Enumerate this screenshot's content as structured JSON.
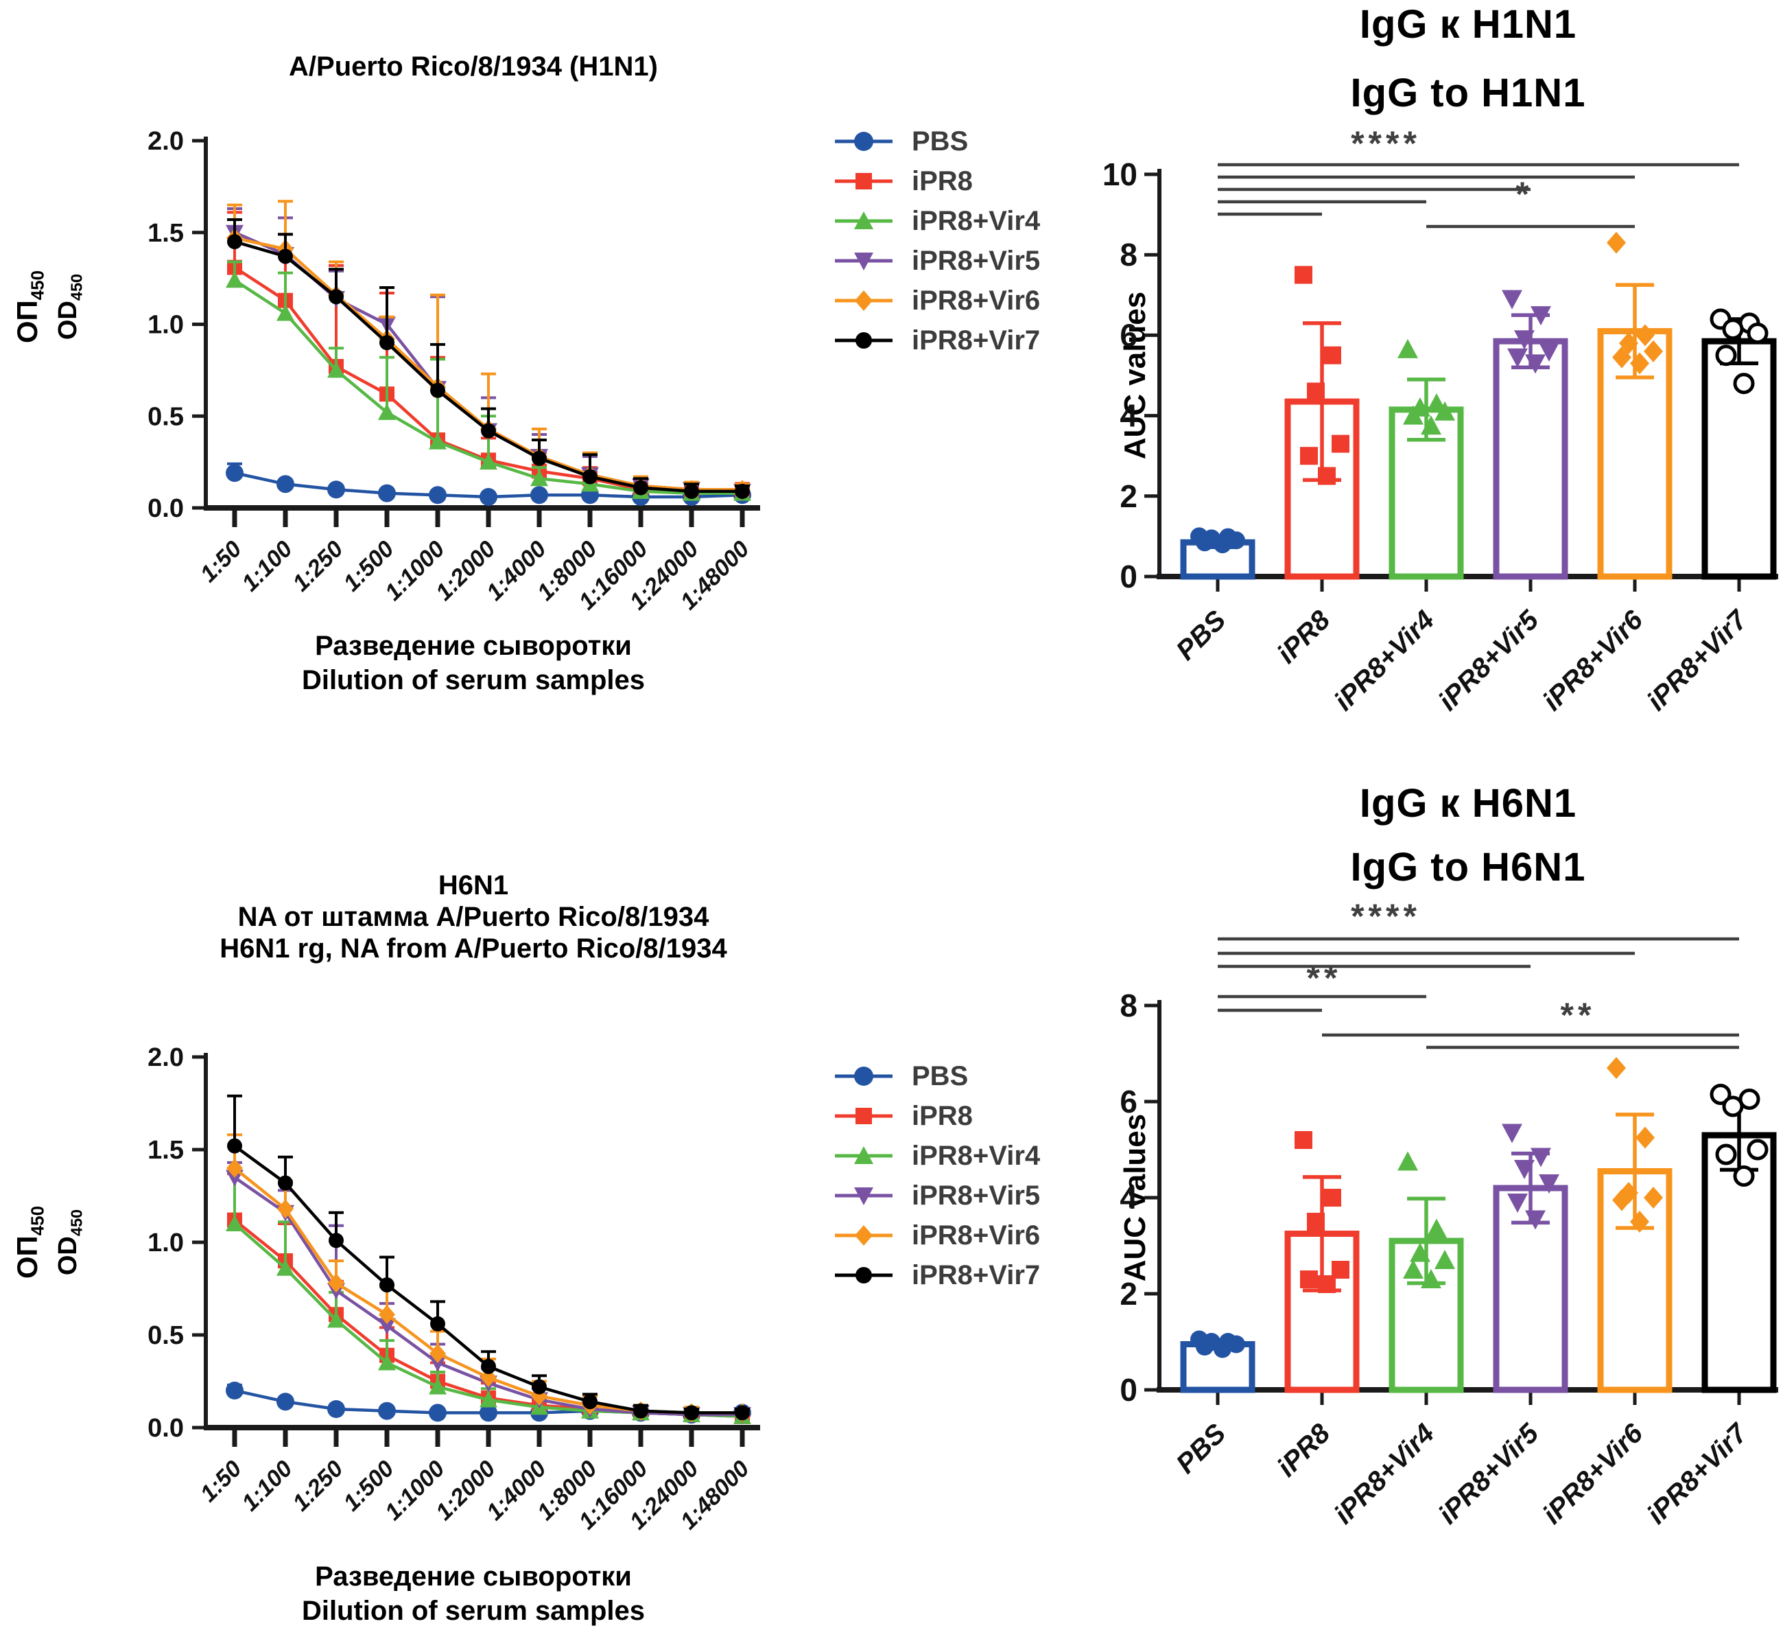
{
  "colors": {
    "pbs": "#2353A3",
    "ipr8": "#F03C2D",
    "vir4": "#57B846",
    "vir5": "#7A52A3",
    "vir6": "#F7941E",
    "vir7": "#000000",
    "significance": "#3F3F3F",
    "axis": "#1A1A1A"
  },
  "groups": [
    "PBS",
    "iPR8",
    "iPR8+Vir4",
    "iPR8+Vir5",
    "iPR8+Vir6",
    "iPR8+Vir7"
  ],
  "legend": {
    "items": [
      {
        "label": "PBS",
        "marker": "circle",
        "color": "#2353A3"
      },
      {
        "label": "iPR8",
        "marker": "square",
        "color": "#F03C2D"
      },
      {
        "label": "iPR8+Vir4",
        "marker": "triangle-up",
        "color": "#57B846"
      },
      {
        "label": "iPR8+Vir5",
        "marker": "triangle-down",
        "color": "#7A52A3"
      },
      {
        "label": "iPR8+Vir6",
        "marker": "diamond",
        "color": "#F7941E"
      },
      {
        "label": "iPR8+Vir7",
        "marker": "circle",
        "color": "#000000"
      }
    ]
  },
  "chart_data": [
    {
      "type": "line",
      "title": [
        "A/Puerto Rico/8/1934 (H1N1)"
      ],
      "ylabel_l1": "ОП",
      "ylabel_l1_sub": "450",
      "ylabel_l2": "OD",
      "ylabel_l2_sub": "450",
      "xlabel": [
        "Разведение сыворотки",
        "Dilution of serum samples"
      ],
      "categories": [
        "1:50",
        "1:100",
        "1:250",
        "1:500",
        "1:1000",
        "1:2000",
        "1:4000",
        "1:8000",
        "1:16000",
        "1:24000",
        "1:48000"
      ],
      "ylim": [
        0,
        2
      ],
      "yticks": {
        "labels": [
          "0.0",
          "0.5",
          "1.0",
          "1.5",
          "2.0"
        ],
        "values": [
          0,
          0.5,
          1.0,
          1.5,
          2.0
        ]
      },
      "grid": false,
      "series": [
        {
          "name": "PBS",
          "marker": "circle",
          "color": "#2353A3",
          "values": [
            0.19,
            0.13,
            0.1,
            0.08,
            0.07,
            0.06,
            0.07,
            0.07,
            0.06,
            0.06,
            0.07
          ],
          "err": [
            0.05,
            0.02,
            0.015,
            0.01,
            0.01,
            0.01,
            0.01,
            0.01,
            0.01,
            0.01,
            0.01
          ]
        },
        {
          "name": "iPR8",
          "marker": "square",
          "color": "#F03C2D",
          "values": [
            1.31,
            1.13,
            0.77,
            0.62,
            0.37,
            0.26,
            0.2,
            0.16,
            0.1,
            0.09,
            0.1
          ],
          "err": [
            0.3,
            0.36,
            0.55,
            0.55,
            0.45,
            0.12,
            0.1,
            0.06,
            0.03,
            0.03,
            0.03
          ]
        },
        {
          "name": "iPR8+Vir4",
          "marker": "triangle-up",
          "color": "#57B846",
          "values": [
            1.24,
            1.06,
            0.75,
            0.52,
            0.36,
            0.25,
            0.16,
            0.13,
            0.09,
            0.08,
            0.08
          ],
          "err": [
            0.1,
            0.22,
            0.12,
            0.3,
            0.45,
            0.25,
            0.06,
            0.04,
            0.03,
            0.02,
            0.02
          ]
        },
        {
          "name": "iPR8+Vir5",
          "marker": "triangle-down",
          "color": "#7A52A3",
          "values": [
            1.5,
            1.38,
            1.14,
            1.0,
            0.65,
            0.42,
            0.28,
            0.18,
            0.12,
            0.1,
            0.09
          ],
          "err": [
            0.13,
            0.2,
            0.15,
            0.2,
            0.5,
            0.18,
            0.12,
            0.1,
            0.04,
            0.03,
            0.03
          ]
        },
        {
          "name": "iPR8+Vir6",
          "marker": "diamond",
          "color": "#F7941E",
          "values": [
            1.47,
            1.41,
            1.16,
            0.92,
            0.66,
            0.43,
            0.28,
            0.18,
            0.12,
            0.1,
            0.1
          ],
          "err": [
            0.18,
            0.26,
            0.18,
            0.12,
            0.5,
            0.3,
            0.15,
            0.12,
            0.05,
            0.04,
            0.03
          ]
        },
        {
          "name": "iPR8+Vir7",
          "marker": "circle",
          "color": "#000000",
          "values": [
            1.45,
            1.37,
            1.15,
            0.9,
            0.64,
            0.42,
            0.27,
            0.17,
            0.11,
            0.09,
            0.09
          ],
          "err": [
            0.12,
            0.12,
            0.15,
            0.3,
            0.25,
            0.12,
            0.1,
            0.12,
            0.05,
            0.04,
            0.03
          ]
        }
      ]
    },
    {
      "type": "bar",
      "title": [
        "IgG к H1N1",
        "IgG to H1N1"
      ],
      "ylabel": "AUC values",
      "ylim": [
        0,
        10
      ],
      "yticks": {
        "labels": [
          "0",
          "2",
          "4",
          "6",
          "8",
          "10"
        ],
        "values": [
          0,
          2,
          4,
          6,
          8,
          10
        ]
      },
      "categories": [
        "PBS",
        "iPR8",
        "iPR8+Vir4",
        "iPR8+Vir5",
        "iPR8+Vir6",
        "iPR8+Vir7"
      ],
      "bars": [
        {
          "group": "PBS",
          "mean": 0.85,
          "sd": 0.12,
          "color": "#2353A3",
          "marker": "circle",
          "points": [
            1.0,
            0.98,
            0.95,
            0.9,
            0.85,
            0.8
          ]
        },
        {
          "group": "iPR8",
          "mean": 4.35,
          "sd": 1.95,
          "color": "#F03C2D",
          "marker": "square",
          "points": [
            7.5,
            5.5,
            4.6,
            3.3,
            3.0,
            2.5
          ]
        },
        {
          "group": "iPR8+Vir4",
          "mean": 4.15,
          "sd": 0.75,
          "color": "#57B846",
          "marker": "triangle-up",
          "points": [
            5.65,
            4.3,
            4.2,
            4.1,
            4.0,
            3.75
          ]
        },
        {
          "group": "iPR8+Vir5",
          "mean": 5.85,
          "sd": 0.65,
          "color": "#7A52A3",
          "marker": "triangle-down",
          "points": [
            6.9,
            6.5,
            5.9,
            5.6,
            5.45,
            5.3
          ]
        },
        {
          "group": "iPR8+Vir6",
          "mean": 6.1,
          "sd": 1.15,
          "color": "#F7941E",
          "marker": "diamond",
          "points": [
            8.3,
            6.0,
            5.8,
            5.6,
            5.45,
            5.3
          ]
        },
        {
          "group": "iPR8+Vir7",
          "mean": 5.85,
          "sd": 0.55,
          "color": "#000000",
          "marker": "circle-open",
          "points": [
            6.4,
            6.3,
            6.15,
            6.05,
            5.5,
            4.8
          ]
        }
      ],
      "significance": [
        {
          "stars": "****",
          "pairs": [
            [
              0,
              5
            ],
            [
              0,
              4
            ],
            [
              0,
              3
            ],
            [
              0,
              2
            ],
            [
              0,
              1
            ]
          ]
        },
        {
          "stars": "*",
          "pairs": [
            [
              2,
              4
            ]
          ]
        }
      ]
    },
    {
      "type": "line",
      "title": [
        "H6N1",
        "NA от штамма A/Puerto Rico/8/1934",
        "H6N1 rg, NA from A/Puerto Rico/8/1934"
      ],
      "ylabel_l1": "ОП",
      "ylabel_l1_sub": "450",
      "ylabel_l2": "OD",
      "ylabel_l2_sub": "450",
      "xlabel": [
        "Разведение сыворотки",
        "Dilution of serum samples"
      ],
      "categories": [
        "1:50",
        "1:100",
        "1:250",
        "1:500",
        "1:1000",
        "1:2000",
        "1:4000",
        "1:8000",
        "1:16000",
        "1:24000",
        "1:48000"
      ],
      "ylim": [
        0,
        2
      ],
      "yticks": {
        "labels": [
          "0.0",
          "0.5",
          "1.0",
          "1.5",
          "2.0"
        ],
        "values": [
          0,
          0.5,
          1.0,
          1.5,
          2.0
        ]
      },
      "grid": false,
      "series": [
        {
          "name": "PBS",
          "marker": "circle",
          "color": "#2353A3",
          "values": [
            0.2,
            0.14,
            0.1,
            0.09,
            0.08,
            0.08,
            0.08,
            0.09,
            0.08,
            0.07,
            0.08
          ],
          "err": [
            0.03,
            0.02,
            0.015,
            0.01,
            0.01,
            0.01,
            0.01,
            0.01,
            0.01,
            0.01,
            0.01
          ]
        },
        {
          "name": "iPR8",
          "marker": "square",
          "color": "#F03C2D",
          "values": [
            1.12,
            0.9,
            0.61,
            0.39,
            0.25,
            0.16,
            0.12,
            0.1,
            0.08,
            0.07,
            0.06
          ],
          "err": [
            0.25,
            0.2,
            0.18,
            0.15,
            0.1,
            0.08,
            0.05,
            0.04,
            0.03,
            0.02,
            0.02
          ]
        },
        {
          "name": "iPR8+Vir4",
          "marker": "triangle-up",
          "color": "#57B846",
          "values": [
            1.1,
            0.86,
            0.58,
            0.35,
            0.22,
            0.15,
            0.11,
            0.09,
            0.08,
            0.07,
            0.06
          ],
          "err": [
            0.28,
            0.25,
            0.15,
            0.12,
            0.08,
            0.06,
            0.05,
            0.08,
            0.03,
            0.02,
            0.02
          ]
        },
        {
          "name": "iPR8+Vir5",
          "marker": "triangle-down",
          "color": "#7A52A3",
          "values": [
            1.35,
            1.16,
            0.74,
            0.55,
            0.35,
            0.24,
            0.15,
            0.1,
            0.08,
            0.07,
            0.07
          ],
          "err": [
            0.08,
            0.12,
            0.35,
            0.12,
            0.1,
            0.08,
            0.06,
            0.04,
            0.03,
            0.02,
            0.02
          ]
        },
        {
          "name": "iPR8+Vir6",
          "marker": "diamond",
          "color": "#F7941E",
          "values": [
            1.4,
            1.18,
            0.78,
            0.61,
            0.4,
            0.27,
            0.17,
            0.12,
            0.09,
            0.08,
            0.08
          ],
          "err": [
            0.18,
            0.15,
            0.12,
            0.15,
            0.12,
            0.1,
            0.08,
            0.05,
            0.03,
            0.03,
            0.02
          ]
        },
        {
          "name": "iPR8+Vir7",
          "marker": "circle",
          "color": "#000000",
          "values": [
            1.52,
            1.32,
            1.01,
            0.77,
            0.56,
            0.33,
            0.22,
            0.14,
            0.09,
            0.08,
            0.08
          ],
          "err": [
            0.27,
            0.14,
            0.15,
            0.15,
            0.12,
            0.08,
            0.06,
            0.04,
            0.03,
            0.02,
            0.02
          ]
        }
      ]
    },
    {
      "type": "bar",
      "title": [
        "IgG к H6N1",
        "IgG to H6N1"
      ],
      "ylabel": "AUC values",
      "ylim": [
        0,
        8
      ],
      "yticks": {
        "labels": [
          "0",
          "2",
          "4",
          "6",
          "8"
        ],
        "values": [
          0,
          2,
          4,
          6,
          8
        ]
      },
      "categories": [
        "PBS",
        "iPR8",
        "iPR8+Vir4",
        "iPR8+Vir5",
        "iPR8+Vir6",
        "iPR8+Vir7"
      ],
      "bars": [
        {
          "group": "PBS",
          "mean": 0.95,
          "sd": 0.08,
          "color": "#2353A3",
          "marker": "circle",
          "points": [
            1.05,
            1.0,
            1.0,
            0.95,
            0.9,
            0.85
          ]
        },
        {
          "group": "iPR8",
          "mean": 3.25,
          "sd": 1.18,
          "color": "#F03C2D",
          "marker": "square",
          "points": [
            5.2,
            4.0,
            3.5,
            2.5,
            2.3,
            2.2
          ]
        },
        {
          "group": "iPR8+Vir4",
          "mean": 3.1,
          "sd": 0.88,
          "color": "#57B846",
          "marker": "triangle-up",
          "points": [
            4.75,
            3.35,
            2.85,
            2.7,
            2.5,
            2.3
          ]
        },
        {
          "group": "iPR8+Vir5",
          "mean": 4.2,
          "sd": 0.72,
          "color": "#7A52A3",
          "marker": "triangle-down",
          "points": [
            5.35,
            4.85,
            4.6,
            4.3,
            3.9,
            3.55
          ]
        },
        {
          "group": "iPR8+Vir6",
          "mean": 4.55,
          "sd": 1.18,
          "color": "#F7941E",
          "marker": "diamond",
          "points": [
            6.7,
            5.25,
            4.1,
            4.0,
            3.95,
            3.5
          ]
        },
        {
          "group": "iPR8+Vir7",
          "mean": 5.3,
          "sd": 0.72,
          "color": "#000000",
          "marker": "circle-open",
          "points": [
            6.15,
            6.05,
            5.9,
            5.0,
            4.9,
            4.45
          ]
        }
      ],
      "significance": [
        {
          "stars": "****",
          "pairs": [
            [
              0,
              5
            ],
            [
              0,
              4
            ],
            [
              0,
              3
            ]
          ]
        },
        {
          "stars": "**",
          "pairs": [
            [
              0,
              2
            ],
            [
              0,
              1
            ]
          ]
        },
        {
          "stars": "**",
          "pairs": [
            [
              1,
              5
            ],
            [
              2,
              5
            ]
          ]
        }
      ]
    }
  ]
}
